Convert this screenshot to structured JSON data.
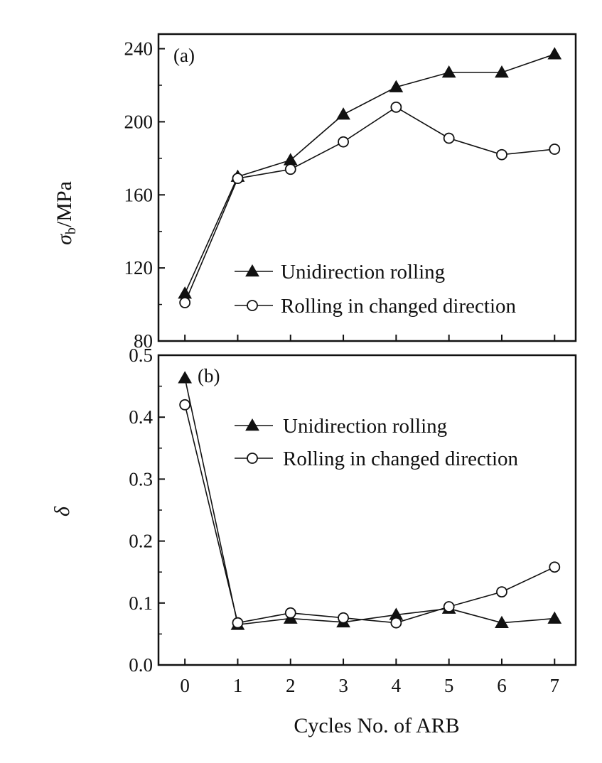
{
  "figure": {
    "xlabel": "Cycles No. of ARB"
  },
  "chart_data": [
    {
      "type": "line",
      "panel_label": "(a)",
      "ylabel_symbol": "σ",
      "ylabel_subscript": "b",
      "ylabel_unit": "/MPa",
      "xlabel": "Cycles No. of ARB",
      "x": [
        0,
        1,
        2,
        3,
        4,
        5,
        6,
        7
      ],
      "xlim": [
        -0.5,
        7.4
      ],
      "ylim": [
        80,
        248
      ],
      "yticks": [
        80,
        120,
        160,
        200,
        240
      ],
      "xticks": [
        0,
        1,
        2,
        3,
        4,
        5,
        6,
        7
      ],
      "legend_position": "lower-right",
      "series": [
        {
          "name": "Unidirection rolling",
          "marker": "filled-triangle",
          "values": [
            106,
            170,
            179,
            204,
            219,
            227,
            227,
            237
          ]
        },
        {
          "name": "Rolling in changed direction",
          "marker": "open-circle",
          "values": [
            101,
            169,
            174,
            189,
            208,
            191,
            182,
            185
          ]
        }
      ]
    },
    {
      "type": "line",
      "panel_label": "(b)",
      "ylabel_symbol": "δ",
      "xlabel": "Cycles No. of ARB",
      "x": [
        0,
        1,
        2,
        3,
        4,
        5,
        6,
        7
      ],
      "xlim": [
        -0.5,
        7.4
      ],
      "ylim": [
        0.0,
        0.5
      ],
      "yticks": [
        "0.0",
        "0.1",
        "0.2",
        "0.3",
        "0.4",
        "0.5"
      ],
      "xticks": [
        0,
        1,
        2,
        3,
        4,
        5,
        6,
        7
      ],
      "legend_position": "upper-right",
      "series": [
        {
          "name": "Unidirection rolling",
          "marker": "filled-triangle",
          "values": [
            0.463,
            0.065,
            0.075,
            0.069,
            0.081,
            0.091,
            0.068,
            0.075
          ]
        },
        {
          "name": "Rolling in changed direction",
          "marker": "open-circle",
          "values": [
            0.42,
            0.068,
            0.084,
            0.076,
            0.068,
            0.094,
            0.118,
            0.158
          ]
        }
      ]
    }
  ]
}
